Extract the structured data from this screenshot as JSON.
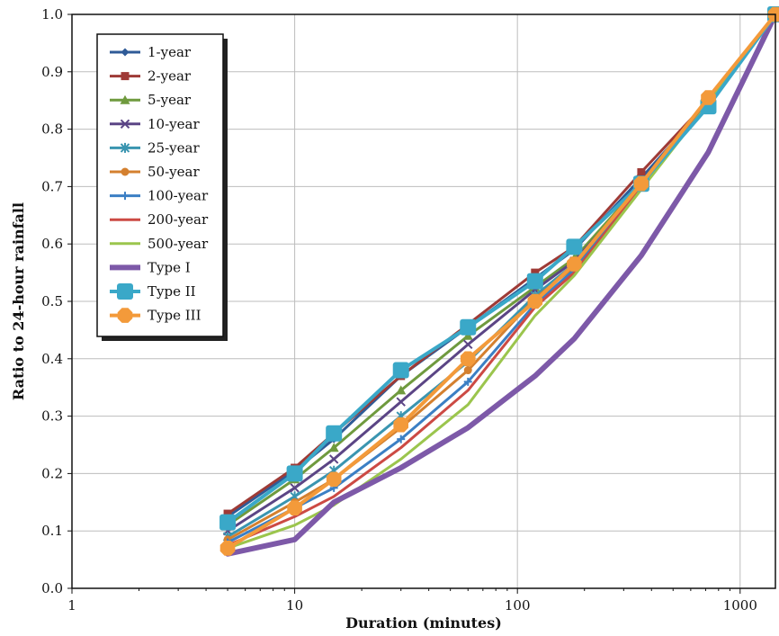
{
  "chart_data": {
    "type": "line",
    "xscale": "log",
    "xlim": [
      1,
      1440
    ],
    "ylim": [
      0,
      1.0
    ],
    "xlabel": "Duration (minutes)",
    "ylabel": "Ratio to 24-hour rainfall",
    "x_ticks": [
      "1",
      "10",
      "100",
      "1000"
    ],
    "y_ticks": [
      "0.0",
      "0.1",
      "0.2",
      "0.3",
      "0.4",
      "0.5",
      "0.6",
      "0.7",
      "0.8",
      "0.9",
      "1.0"
    ],
    "grid": true,
    "legend_position": "top-left",
    "series": [
      {
        "name": "1-year",
        "color": "#2f5b97",
        "marker": "diamond",
        "x": [
          5,
          10,
          15,
          30,
          60,
          120,
          180,
          360,
          720,
          1440
        ],
        "y": [
          0.125,
          0.205,
          0.26,
          0.37,
          0.455,
          0.54,
          0.59,
          0.715,
          0.845,
          1.0
        ]
      },
      {
        "name": "2-year",
        "color": "#9e3a36",
        "marker": "square",
        "x": [
          5,
          10,
          15,
          30,
          60,
          120,
          180,
          360,
          720,
          1440
        ],
        "y": [
          0.13,
          0.21,
          0.27,
          0.37,
          0.46,
          0.55,
          0.595,
          0.725,
          0.85,
          1.0
        ]
      },
      {
        "name": "5-year",
        "color": "#6f9a3e",
        "marker": "triangle",
        "x": [
          5,
          10,
          15,
          30,
          60,
          120,
          180,
          360,
          720,
          1440
        ],
        "y": [
          0.11,
          0.19,
          0.245,
          0.345,
          0.44,
          0.525,
          0.575,
          0.705,
          0.845,
          1.0
        ]
      },
      {
        "name": "10-year",
        "color": "#5b4585",
        "marker": "x",
        "x": [
          5,
          10,
          15,
          30,
          60,
          120,
          180,
          360,
          720,
          1440
        ],
        "y": [
          0.1,
          0.175,
          0.225,
          0.325,
          0.425,
          0.52,
          0.57,
          0.7,
          0.845,
          1.0
        ]
      },
      {
        "name": "25-year",
        "color": "#3a95b0",
        "marker": "star",
        "x": [
          5,
          10,
          15,
          30,
          60,
          120,
          180,
          360,
          720,
          1440
        ],
        "y": [
          0.09,
          0.16,
          0.205,
          0.3,
          0.395,
          0.51,
          0.565,
          0.7,
          0.845,
          1.0
        ]
      },
      {
        "name": "50-year",
        "color": "#d4802f",
        "marker": "circle",
        "x": [
          5,
          10,
          15,
          30,
          60,
          120,
          180,
          360,
          720,
          1440
        ],
        "y": [
          0.085,
          0.15,
          0.19,
          0.28,
          0.38,
          0.505,
          0.56,
          0.7,
          0.845,
          1.0
        ]
      },
      {
        "name": "100-year",
        "color": "#3b7fc4",
        "marker": "plus",
        "x": [
          5,
          10,
          15,
          30,
          60,
          120,
          180,
          360,
          720,
          1440
        ],
        "y": [
          0.08,
          0.14,
          0.175,
          0.26,
          0.36,
          0.495,
          0.555,
          0.7,
          0.845,
          1.0
        ]
      },
      {
        "name": "200-year",
        "color": "#cc4a44",
        "marker": "none",
        "x": [
          5,
          10,
          15,
          30,
          60,
          120,
          180,
          360,
          720,
          1440
        ],
        "y": [
          0.075,
          0.125,
          0.16,
          0.245,
          0.345,
          0.49,
          0.55,
          0.7,
          0.845,
          1.0
        ]
      },
      {
        "name": "500-year",
        "color": "#9bc54d",
        "marker": "none",
        "x": [
          5,
          10,
          15,
          30,
          60,
          120,
          180,
          360,
          720,
          1440
        ],
        "y": [
          0.07,
          0.11,
          0.145,
          0.225,
          0.32,
          0.475,
          0.545,
          0.695,
          0.845,
          1.0
        ]
      },
      {
        "name": "Type I",
        "color": "#7d59a8",
        "marker": "none",
        "x": [
          5,
          10,
          15,
          30,
          60,
          120,
          180,
          360,
          720,
          1440
        ],
        "y": [
          0.06,
          0.085,
          0.15,
          0.21,
          0.28,
          0.37,
          0.435,
          0.58,
          0.76,
          1.0
        ]
      },
      {
        "name": "Type II",
        "color": "#3aa8c8",
        "marker": "square-big",
        "x": [
          5,
          10,
          15,
          30,
          60,
          120,
          180,
          360,
          720,
          1440
        ],
        "y": [
          0.115,
          0.2,
          0.27,
          0.38,
          0.455,
          0.535,
          0.595,
          0.705,
          0.84,
          1.0
        ]
      },
      {
        "name": "Type III",
        "color": "#f39a3a",
        "marker": "octagon",
        "x": [
          5,
          10,
          15,
          30,
          60,
          120,
          180,
          360,
          720,
          1440
        ],
        "y": [
          0.07,
          0.14,
          0.19,
          0.285,
          0.4,
          0.5,
          0.565,
          0.705,
          0.855,
          1.0
        ]
      }
    ]
  }
}
